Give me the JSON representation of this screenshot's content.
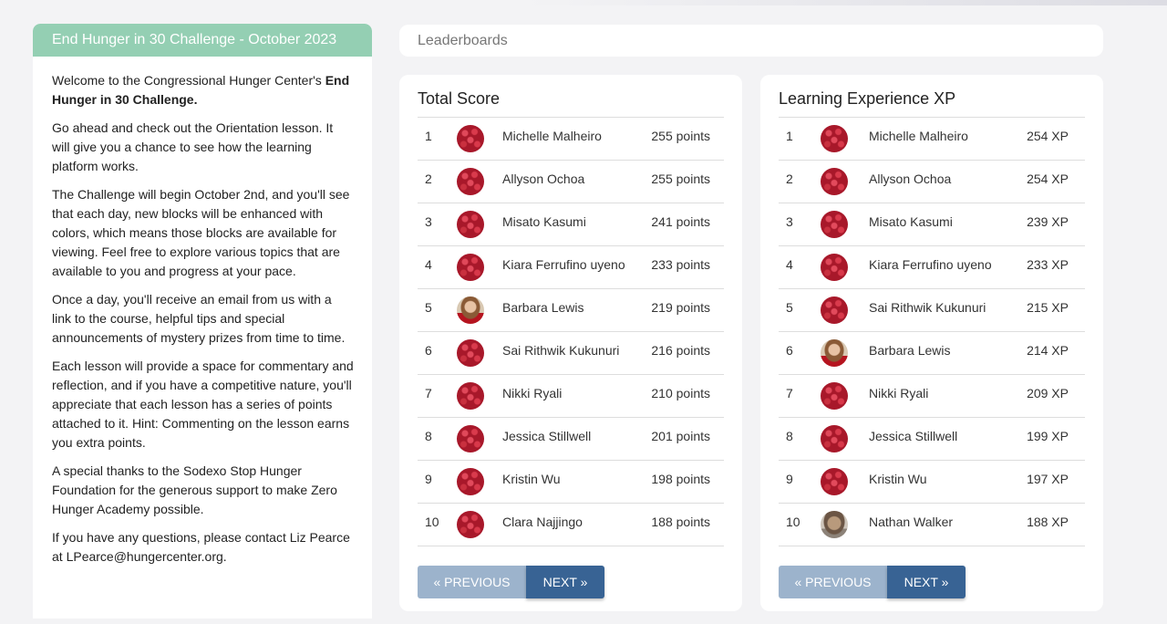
{
  "info": {
    "title": "End Hunger in 30 Challenge - October 2023",
    "p1_prefix": "Welcome to the Congressional Hunger Center's ",
    "p1_bold": "End Hunger in 30 Challenge.",
    "p2": "Go ahead and check out the Orientation lesson. It will give you a chance to see how the learning platform works.",
    "p3": "The Challenge will begin October 2nd, and you'll see that each day, new blocks will be enhanced with colors, which means those blocks are available for viewing. Feel free to explore various topics that are available to you and progress at your pace.",
    "p4": "Once a day, you'll receive an email from us with a link to the course, helpful tips and special announcements of mystery prizes from time to time.",
    "p5": "Each lesson will provide a space for commentary and reflection, and if you have a competitive nature, you'll appreciate that each lesson has a series of points attached to it. Hint: Commenting on the lesson earns you extra points.",
    "p6": "A special thanks to the Sodexo Stop Hunger Foundation for the generous support to make Zero Hunger Academy possible.",
    "p7": "If you have any questions, please contact Liz Pearce at LPearce@hungercenter.org."
  },
  "leaderboards_title": "Leaderboards",
  "total": {
    "title": "Total Score",
    "rows": [
      {
        "rank": "1",
        "name": "Michelle Malheiro",
        "score": "255 points",
        "avatar": "berry"
      },
      {
        "rank": "2",
        "name": "Allyson Ochoa",
        "score": "255 points",
        "avatar": "berry"
      },
      {
        "rank": "3",
        "name": "Misato Kasumi",
        "score": "241 points",
        "avatar": "berry"
      },
      {
        "rank": "4",
        "name": "Kiara Ferrufino uyeno",
        "score": "233 points",
        "avatar": "berry"
      },
      {
        "rank": "5",
        "name": "Barbara Lewis",
        "score": "219 points",
        "avatar": "photo-woman"
      },
      {
        "rank": "6",
        "name": "Sai Rithwik Kukunuri",
        "score": "216 points",
        "avatar": "berry"
      },
      {
        "rank": "7",
        "name": "Nikki Ryali",
        "score": "210 points",
        "avatar": "berry"
      },
      {
        "rank": "8",
        "name": "Jessica Stillwell",
        "score": "201 points",
        "avatar": "berry"
      },
      {
        "rank": "9",
        "name": "Kristin Wu",
        "score": "198 points",
        "avatar": "berry"
      },
      {
        "rank": "10",
        "name": "Clara Najjingo",
        "score": "188 points",
        "avatar": "berry"
      }
    ],
    "prev_label": "« PREVIOUS",
    "next_label": "NEXT »"
  },
  "xp": {
    "title": "Learning Experience XP",
    "rows": [
      {
        "rank": "1",
        "name": "Michelle Malheiro",
        "score": "254 XP",
        "avatar": "berry"
      },
      {
        "rank": "2",
        "name": "Allyson Ochoa",
        "score": "254 XP",
        "avatar": "berry"
      },
      {
        "rank": "3",
        "name": "Misato Kasumi",
        "score": "239 XP",
        "avatar": "berry"
      },
      {
        "rank": "4",
        "name": "Kiara Ferrufino uyeno",
        "score": "233 XP",
        "avatar": "berry"
      },
      {
        "rank": "5",
        "name": "Sai Rithwik Kukunuri",
        "score": "215 XP",
        "avatar": "berry"
      },
      {
        "rank": "6",
        "name": "Barbara Lewis",
        "score": "214 XP",
        "avatar": "photo-woman"
      },
      {
        "rank": "7",
        "name": "Nikki Ryali",
        "score": "209 XP",
        "avatar": "berry"
      },
      {
        "rank": "8",
        "name": "Jessica Stillwell",
        "score": "199 XP",
        "avatar": "berry"
      },
      {
        "rank": "9",
        "name": "Kristin Wu",
        "score": "197 XP",
        "avatar": "berry"
      },
      {
        "rank": "10",
        "name": "Nathan Walker",
        "score": "188 XP",
        "avatar": "photo-man"
      }
    ],
    "prev_label": "« PREVIOUS",
    "next_label": "NEXT »"
  },
  "colors": {
    "info_header": "#94cfb3",
    "prev_button": "#9cb3cc",
    "next_button": "#386394"
  }
}
